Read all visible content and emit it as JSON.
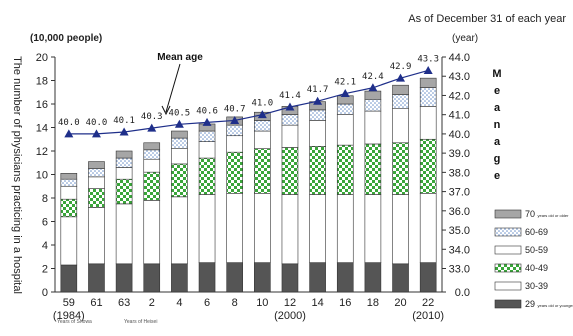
{
  "note_top_right": "As of December 31 of each year",
  "left_unit": "(10,000 people)",
  "right_unit": "(year)",
  "left_axis_title": "The number of physicians practicing in a hospital",
  "right_axis_title": "Mean age",
  "mean_age_callout": "Mean age",
  "era_note_showa": "Years of Showa",
  "era_note_heisei": "Years of Heisei",
  "chart_data": {
    "type": "bar",
    "subtype": "stacked bar with line",
    "categories": [
      "59",
      "61",
      "63",
      "2",
      "4",
      "6",
      "8",
      "10",
      "12",
      "14",
      "16",
      "18",
      "20",
      "22"
    ],
    "category_sublabels": [
      "(1984)",
      "",
      "",
      "",
      "",
      "",
      "",
      "",
      "(2000)",
      "",
      "",
      "",
      "",
      "(2010)"
    ],
    "ylim": [
      0,
      20
    ],
    "y_ticks": [
      0,
      2,
      4,
      6,
      8,
      10,
      12,
      14,
      16,
      18,
      20
    ],
    "y2lim": [
      0.0,
      44.0
    ],
    "y2_ticks": [
      "0.0",
      "33.0",
      "34.0",
      "35.0",
      "36.0",
      "37.0",
      "38.0",
      "39.0",
      "40.0",
      "41.0",
      "42.0",
      "43.0",
      "44.0"
    ],
    "series": [
      {
        "name": "29 years old or younger",
        "color": "#555555",
        "pattern": "solid-dark",
        "values": [
          2.3,
          2.4,
          2.4,
          2.4,
          2.4,
          2.5,
          2.5,
          2.5,
          2.4,
          2.5,
          2.5,
          2.5,
          2.4,
          2.5
        ]
      },
      {
        "name": "30-39",
        "color": "#ffffff",
        "pattern": "white",
        "values": [
          4.1,
          4.8,
          5.1,
          5.4,
          5.7,
          5.8,
          5.9,
          5.9,
          5.9,
          5.8,
          5.8,
          5.8,
          5.9,
          5.9
        ]
      },
      {
        "name": "40-49",
        "color": "#3aa63a",
        "pattern": "green-check",
        "values": [
          1.5,
          1.6,
          2.1,
          2.4,
          2.8,
          3.1,
          3.5,
          3.8,
          4.0,
          4.1,
          4.2,
          4.3,
          4.4,
          4.6
        ]
      },
      {
        "name": "50-59",
        "color": "#ffffff",
        "pattern": "white",
        "values": [
          1.1,
          1.0,
          1.0,
          1.1,
          1.3,
          1.4,
          1.4,
          1.5,
          1.9,
          2.2,
          2.6,
          2.8,
          2.9,
          2.8
        ]
      },
      {
        "name": "60-69",
        "color": "#cfe0f5",
        "pattern": "dots",
        "values": [
          0.6,
          0.7,
          0.8,
          0.8,
          0.9,
          0.9,
          0.9,
          0.9,
          0.9,
          0.9,
          0.9,
          1.0,
          1.2,
          1.6
        ]
      },
      {
        "name": "70 years old or older",
        "color": "#999999",
        "pattern": "solid-gray",
        "values": [
          0.5,
          0.6,
          0.6,
          0.6,
          0.6,
          0.6,
          0.7,
          0.7,
          0.7,
          0.7,
          0.7,
          0.7,
          0.8,
          0.8
        ]
      }
    ],
    "mean_age": {
      "name": "Mean age",
      "values": [
        40.0,
        40.0,
        40.1,
        40.3,
        40.5,
        40.6,
        40.7,
        41.0,
        41.4,
        41.7,
        42.1,
        42.4,
        42.9,
        43.3
      ],
      "labels": [
        "40.0",
        "40.0",
        "40.1",
        "40.3",
        "40.5",
        "40.6",
        "40.7",
        "41.0",
        "41.4",
        "41.7",
        "42.1",
        "42.4",
        "42.9",
        "43.3"
      ],
      "color": "#1f2f8a"
    },
    "legend_labels": [
      "70 years old or older",
      "60-69",
      "50-59",
      "40-49",
      "30-39",
      "29 years old or younger"
    ],
    "legend_position": "right",
    "grid": false
  }
}
